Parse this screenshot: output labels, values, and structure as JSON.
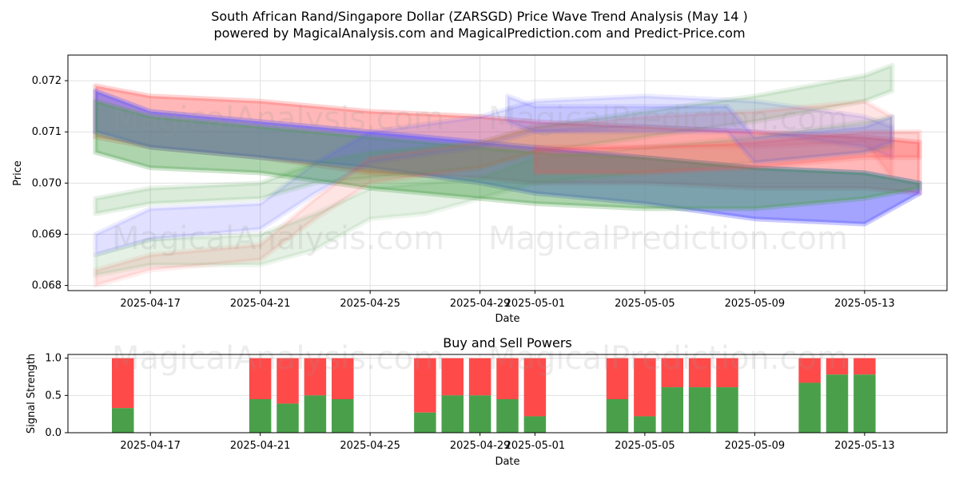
{
  "title_line1": "South African Rand/Singapore Dollar (ZARSGD) Price Wave Trend Analysis (May 14 )",
  "title_line2": "powered by MagicalAnalysis.com and MagicalPrediction.com and Predict-Price.com",
  "watermarks": [
    "MagicalAnalysis.com",
    "MagicalPrediction.com"
  ],
  "colors": {
    "red": "#ff4a4a",
    "green": "#4aa04a",
    "blue": "#5a5aff",
    "grid": "#e0e0e0"
  },
  "chart_data": [
    {
      "type": "area",
      "xlabel": "Date",
      "ylabel": "Price",
      "x_ticks": [
        "2025-04-17",
        "2025-04-21",
        "2025-04-25",
        "2025-04-29",
        "2025-05-01",
        "2025-05-05",
        "2025-05-09",
        "2025-05-13"
      ],
      "y_ticks": [
        "0.068",
        "0.069",
        "0.070",
        "0.071",
        "0.072"
      ],
      "xlim": [
        "2025-04-14",
        "2025-05-16"
      ],
      "ylim": [
        0.0679,
        0.0725
      ],
      "grid": true,
      "bands": [
        {
          "color": "red",
          "opacity": 0.4,
          "x": [
            "2025-04-15",
            "2025-04-17",
            "2025-04-21",
            "2025-04-25",
            "2025-04-29",
            "2025-05-01",
            "2025-05-05",
            "2025-05-09",
            "2025-05-13",
            "2025-05-15"
          ],
          "upper": [
            0.0719,
            0.0717,
            0.0716,
            0.0714,
            0.0713,
            0.0712,
            0.0711,
            0.071,
            0.0709,
            0.0708
          ],
          "lower": [
            0.0709,
            0.0707,
            0.0705,
            0.0702,
            0.0701,
            0.07,
            0.07,
            0.0699,
            0.0699,
            0.0698
          ]
        },
        {
          "color": "blue",
          "opacity": 0.55,
          "x": [
            "2025-04-15",
            "2025-04-17",
            "2025-04-21",
            "2025-04-25",
            "2025-04-29",
            "2025-05-01",
            "2025-05-05",
            "2025-05-09",
            "2025-05-13",
            "2025-05-15"
          ],
          "upper": [
            0.0718,
            0.0714,
            0.0712,
            0.071,
            0.0708,
            0.0707,
            0.0705,
            0.0703,
            0.0702,
            0.07
          ],
          "lower": [
            0.071,
            0.0707,
            0.0705,
            0.0703,
            0.07,
            0.0698,
            0.0696,
            0.0693,
            0.0692,
            0.0698
          ]
        },
        {
          "color": "green",
          "opacity": 0.45,
          "x": [
            "2025-04-15",
            "2025-04-17",
            "2025-04-21",
            "2025-04-25",
            "2025-04-29",
            "2025-05-01",
            "2025-05-05",
            "2025-05-09",
            "2025-05-13",
            "2025-05-15"
          ],
          "upper": [
            0.0716,
            0.0713,
            0.0711,
            0.0709,
            0.0707,
            0.0706,
            0.0705,
            0.0703,
            0.0702,
            0.07
          ],
          "lower": [
            0.0706,
            0.0703,
            0.0702,
            0.0699,
            0.0697,
            0.0696,
            0.0695,
            0.0695,
            0.0697,
            0.0699
          ]
        },
        {
          "color": "blue",
          "opacity": 0.18,
          "x": [
            "2025-04-15",
            "2025-04-17",
            "2025-04-21",
            "2025-04-23",
            "2025-04-25",
            "2025-04-29",
            "2025-05-01",
            "2025-05-05",
            "2025-05-09",
            "2025-05-13",
            "2025-05-14"
          ],
          "upper": [
            0.069,
            0.0695,
            0.0696,
            0.0704,
            0.071,
            0.0713,
            0.0716,
            0.0717,
            0.0716,
            0.0713,
            0.0711
          ],
          "lower": [
            0.0686,
            0.0689,
            0.0691,
            0.0698,
            0.0704,
            0.0707,
            0.071,
            0.0711,
            0.071,
            0.0707,
            0.0705
          ]
        },
        {
          "color": "green",
          "opacity": 0.2,
          "x": [
            "2025-04-15",
            "2025-04-17",
            "2025-04-21",
            "2025-04-23",
            "2025-04-25",
            "2025-04-29",
            "2025-05-01",
            "2025-05-05",
            "2025-05-09",
            "2025-05-13",
            "2025-05-14"
          ],
          "upper": [
            0.0697,
            0.0699,
            0.07,
            0.0704,
            0.0706,
            0.0708,
            0.0711,
            0.0714,
            0.0717,
            0.0721,
            0.0723
          ],
          "lower": [
            0.0694,
            0.0696,
            0.0697,
            0.07,
            0.0701,
            0.0703,
            0.0706,
            0.0709,
            0.0712,
            0.0716,
            0.0718
          ]
        },
        {
          "color": "red",
          "opacity": 0.15,
          "x": [
            "2025-04-15",
            "2025-04-17",
            "2025-04-21",
            "2025-04-23",
            "2025-04-25",
            "2025-04-29",
            "2025-05-01",
            "2025-05-05",
            "2025-05-09",
            "2025-05-13",
            "2025-05-14"
          ],
          "upper": [
            0.0683,
            0.0686,
            0.0688,
            0.0697,
            0.0705,
            0.0708,
            0.0711,
            0.0713,
            0.0714,
            0.0716,
            0.0713
          ],
          "lower": [
            0.068,
            0.0683,
            0.0685,
            0.0693,
            0.07,
            0.0703,
            0.0706,
            0.0707,
            0.0707,
            0.0708,
            0.0701
          ]
        },
        {
          "color": "green",
          "opacity": 0.15,
          "x": [
            "2025-04-15",
            "2025-04-17",
            "2025-04-21",
            "2025-04-23",
            "2025-04-25",
            "2025-04-27",
            "2025-04-29",
            "2025-05-01",
            "2025-05-05",
            "2025-05-09",
            "2025-05-13",
            "2025-05-14"
          ],
          "upper": [
            0.0686,
            0.0689,
            0.069,
            0.0694,
            0.0699,
            0.07,
            0.0701,
            0.0705,
            0.0707,
            0.0709,
            0.0712,
            0.0713
          ],
          "lower": [
            0.0682,
            0.0684,
            0.0684,
            0.0687,
            0.0693,
            0.0694,
            0.0697,
            0.07,
            0.0702,
            0.0704,
            0.0706,
            0.0707
          ]
        },
        {
          "color": "red",
          "opacity": 0.25,
          "x": [
            "2025-05-01",
            "2025-05-05",
            "2025-05-09",
            "2025-05-13",
            "2025-05-15"
          ],
          "upper": [
            0.0707,
            0.0707,
            0.0708,
            0.071,
            0.071
          ],
          "lower": [
            0.0702,
            0.0702,
            0.0703,
            0.0705,
            0.0705
          ]
        },
        {
          "color": "blue",
          "opacity": 0.2,
          "x": [
            "2025-04-30",
            "2025-05-01",
            "2025-05-08",
            "2025-05-09",
            "2025-05-13",
            "2025-05-14"
          ],
          "upper": [
            0.0717,
            0.0715,
            0.0715,
            0.0709,
            0.0711,
            0.0713
          ],
          "lower": [
            0.0712,
            0.071,
            0.071,
            0.0704,
            0.0706,
            0.0708
          ]
        }
      ]
    },
    {
      "type": "bar",
      "title": "Buy and Sell Powers",
      "xlabel": "Date",
      "ylabel": "Signal Strength",
      "x_ticks": [
        "2025-04-17",
        "2025-04-21",
        "2025-04-25",
        "2025-04-29",
        "2025-05-01",
        "2025-05-05",
        "2025-05-09",
        "2025-05-13"
      ],
      "y_ticks": [
        "0.0",
        "0.5",
        "1.0"
      ],
      "ylim": [
        0,
        1.05
      ],
      "grid": true,
      "series": [
        {
          "color": "green",
          "role": "buy"
        },
        {
          "color": "red",
          "role": "sell"
        }
      ],
      "dates": [
        "2025-04-16",
        "2025-04-21",
        "2025-04-22",
        "2025-04-23",
        "2025-04-24",
        "2025-04-27",
        "2025-04-28",
        "2025-04-29",
        "2025-04-30",
        "2025-05-01",
        "2025-05-04",
        "2025-05-05",
        "2025-05-06",
        "2025-05-07",
        "2025-05-08",
        "2025-05-11",
        "2025-05-12",
        "2025-05-13"
      ],
      "buy": [
        0.33,
        0.45,
        0.39,
        0.5,
        0.45,
        0.27,
        0.5,
        0.5,
        0.45,
        0.22,
        0.45,
        0.22,
        0.61,
        0.61,
        0.61,
        0.67,
        0.78,
        0.78
      ]
    }
  ]
}
